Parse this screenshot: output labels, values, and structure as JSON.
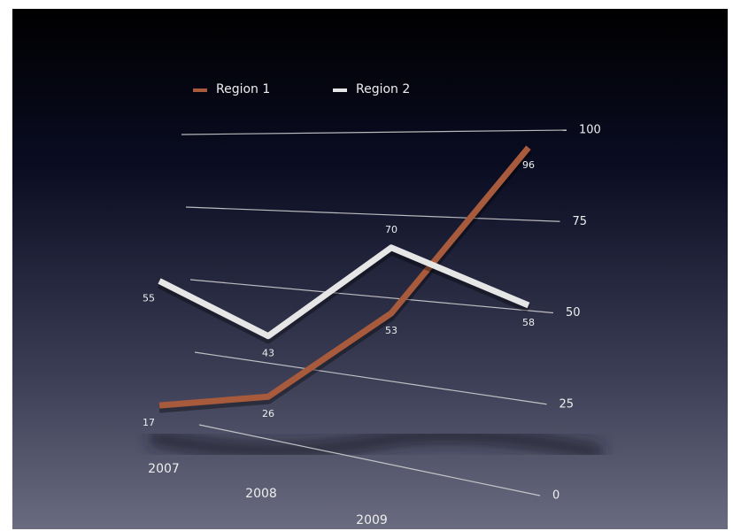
{
  "chart_data": {
    "type": "line",
    "categories": [
      "2007",
      "2008",
      "2009",
      null
    ],
    "series": [
      {
        "name": "Region 1",
        "color": "#a85a3c",
        "values": [
          17,
          26,
          53,
          96
        ]
      },
      {
        "name": "Region 2",
        "color": "#e6e6e6",
        "values": [
          55,
          43,
          70,
          58
        ]
      }
    ],
    "ylim": [
      0,
      100
    ],
    "yticks": [
      0,
      25,
      50,
      75,
      100
    ],
    "grid": true,
    "legend": "top"
  }
}
